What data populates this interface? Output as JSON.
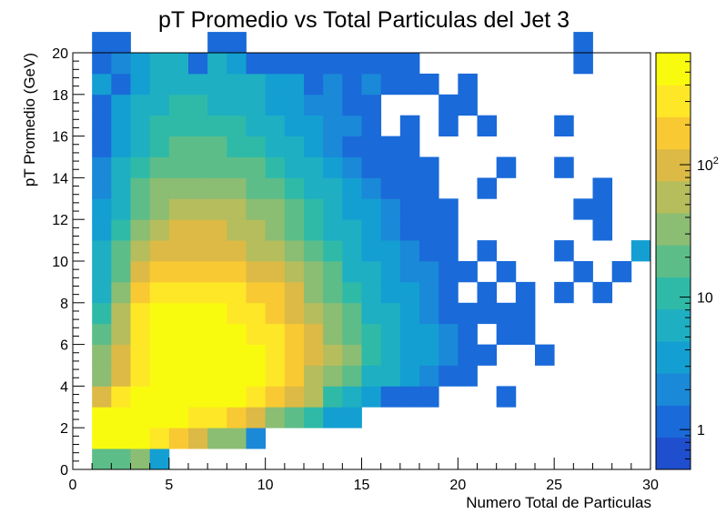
{
  "chart_data": {
    "type": "heatmap",
    "title": "pT Promedio vs Total Particulas del Jet 3",
    "xlabel": "Numero Total de Particulas",
    "ylabel": "pT Promedio (GeV)",
    "xlim": [
      0,
      30
    ],
    "ylim": [
      0,
      20
    ],
    "x_bin_width": 1,
    "y_bin_width": 1,
    "x_ticks": [
      "0",
      "5",
      "10",
      "15",
      "20",
      "25",
      "30"
    ],
    "y_ticks": [
      "0",
      "2",
      "4",
      "6",
      "8",
      "10",
      "12",
      "14",
      "16",
      "18",
      "20"
    ],
    "z_scale": "log",
    "z_range": [
      0.5,
      700
    ],
    "colorbar_labels": [
      {
        "value": 1,
        "base": "1",
        "exp": ""
      },
      {
        "value": 10,
        "base": "10",
        "exp": ""
      },
      {
        "value": 100,
        "base": "10",
        "exp": "2"
      }
    ],
    "palette": [
      "#1f4fce",
      "#1a6ad9",
      "#1a89d8",
      "#149fd2",
      "#1eafc3",
      "#2fbaa8",
      "#5cbd89",
      "#8bbd73",
      "#b5bd5d",
      "#dcba45",
      "#f8c933",
      "#fee727",
      "#f9fb0e"
    ],
    "rows": [
      "0:16,16,34,4",
      "1:450,450,500,250,150,100,40,40,2",
      "2:420,450,600,700,600,350,300,150,100,30,20,10,4,4",
      "3:120,250,500,800,900,1000,800,500,400,200,100,50,10,5,3,1,1,1,0,0,0,1",
      "4:30,90,300,800,1000,1000,1000,800,500,250,150,70,30,15,8,5,3,2,1,1,0,0,0,0,0,0",
      "5:25,80,400,900,1000,1000,900,700,500,300,200,100,50,25,10,6,4,3,2,1,1,0,0,1",
      "6:15,60,350,700,1000,1000,800,600,400,250,150,80,40,20,10,6,4,3,2,1,0,1,1,0,0",
      "7:10,50,250,500,600,600,500,400,300,200,100,60,30,15,8,5,3,2,1,1,1,1,1,0,0,0,0,0,0,0",
      "8:8,30,150,300,400,400,350,300,200,150,80,40,20,10,6,4,3,2,1,0,1,0,1,0,1,0,1",
      "9:6,20,80,150,200,200,180,150,100,80,50,30,15,8,5,3,2,2,1,1,0,1,0,0,0,1,0,1",
      "10:5,15,50,100,120,130,120,100,70,50,30,20,10,6,4,3,2,1,1,0,1,0,0,0,1,0,0,0,3",
      "11:4,10,30,60,80,90,80,70,50,35,20,12,8,5,3,2,1,1,1,0,0,0,0,0,0,0,1,0",
      "12:3,8,20,40,50,55,50,45,35,25,15,10,6,4,3,2,1,1,1,0,0,0,0,0,0,1,1",
      "13:2,6,15,25,30,35,30,28,20,15,10,7,5,3,2,1,1,1,0,0,1,0,0,0,0,0,1",
      "14:2,5,10,18,20,22,20,18,15,10,7,5,3,2,1,1,1,1,0,0,0,1,0,0,1",
      "15:1,4,8,12,15,16,15,12,10,8,5,3,2,1,1,1,1,0,0,0,0,0,0,0,0,0,0",
      "16:1,3,6,9,11,12,11,9,7,5,4,3,2,2,1,0,1,0,1,0,1,0,0,0,1,0",
      "17:1,3,5,7,9,9,8,7,6,4,3,2,2,1,1,0,0,0,1,1,0",
      "18:3,1,4,6,8,8,8,7,5,4,3,1,2,1,2,1,1,1,0,1,0",
      "19:1,2,4,5,6,1,5,4,1,1,1,1,1,1,1,1,1,0,0,0,0,0,0,0,0,1",
      "20:1,1,0,0,0,0,1,1,0,0,0,0,0,0,0,0,0,0,0,0,0,0,0,0,0,1"
    ]
  }
}
